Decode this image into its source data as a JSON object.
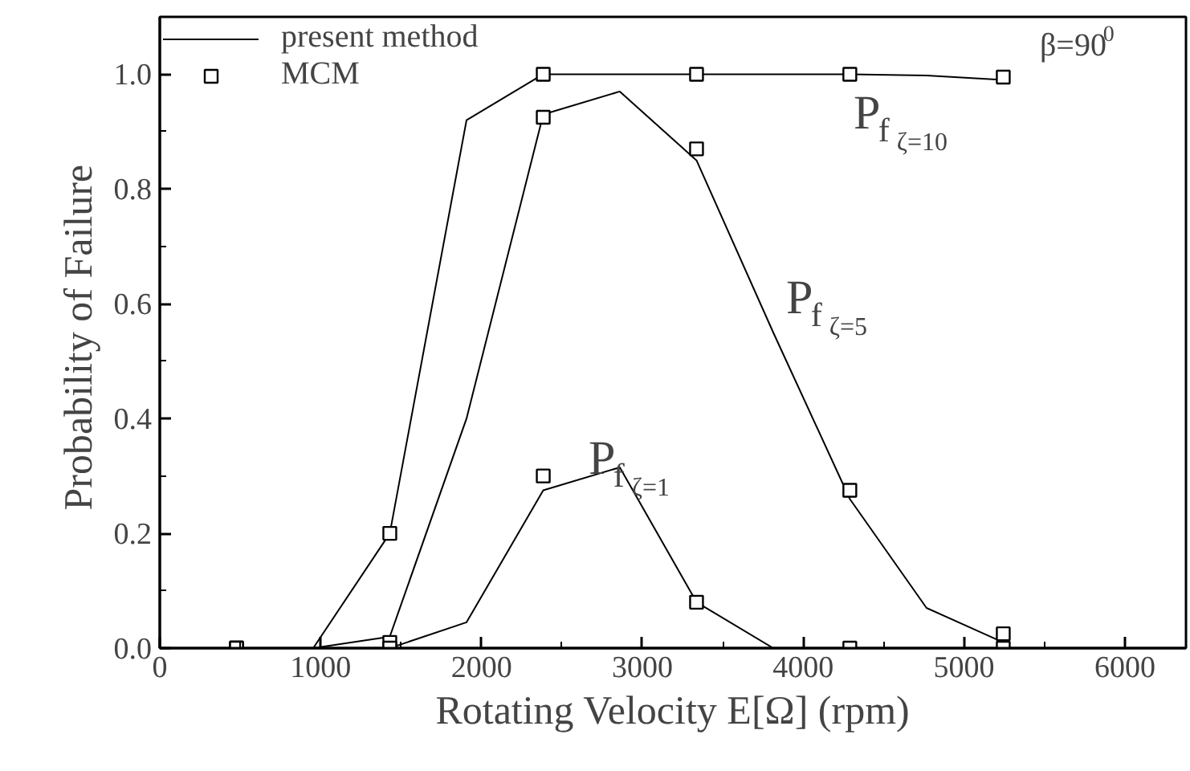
{
  "chart_data": {
    "type": "line",
    "xlabel": "Rotating Velocity E[Ω] (rpm)",
    "ylabel": "Probability of  Failure",
    "xlim": [
      0,
      6380
    ],
    "ylim": [
      0,
      1.1
    ],
    "xticks": [
      0,
      {
        "value": 500,
        "label": null
      },
      1000,
      {
        "value": 1500,
        "label": null
      },
      2000,
      {
        "value": 2500,
        "label": null
      },
      3000,
      {
        "value": 3500,
        "label": null
      },
      4000,
      {
        "value": 4500,
        "label": null
      },
      5000,
      {
        "value": 5500,
        "label": null
      },
      6000
    ],
    "yticks": [
      {
        "value": 0,
        "label": "0.0"
      },
      {
        "value": 0.1,
        "label": null
      },
      {
        "value": 0.2,
        "label": "0.2"
      },
      {
        "value": 0.3,
        "label": null
      },
      {
        "value": 0.4,
        "label": "0.4"
      },
      {
        "value": 0.5,
        "label": null
      },
      {
        "value": 0.6,
        "label": "0.6"
      },
      {
        "value": 0.7,
        "label": null
      },
      {
        "value": 0.8,
        "label": "0.8"
      },
      {
        "value": 0.9,
        "label": null
      },
      {
        "value": 1.0,
        "label": "1.0"
      }
    ],
    "grid": false,
    "legend": "top left",
    "series": [
      {
        "name": "present method",
        "marker": "none",
        "line_style": "solid",
        "color": "#000000",
        "x": [
          477,
          954,
          1430,
          1907,
          2384,
          2860,
          3337,
          3814,
          4290,
          4767,
          5244
        ],
        "values": [
          0,
          0,
          0.2,
          0.92,
          1.0,
          1.0,
          1.0,
          1.0,
          1.0,
          0.998,
          0.99
        ]
      },
      {
        "marker": "none",
        "line_style": "solid",
        "color": "#000000",
        "x": [
          477,
          954,
          1430,
          1907,
          2384,
          2860,
          3337,
          3814,
          4290,
          4767,
          5244
        ],
        "values": [
          0,
          0,
          0.02,
          0.4,
          0.93,
          0.97,
          0.85,
          0.55,
          0.26,
          0.07,
          0.01
        ]
      },
      {
        "marker": "none",
        "line_style": "solid",
        "color": "#000000",
        "x": [
          477,
          954,
          1430,
          1907,
          2384,
          2860,
          3337,
          3814,
          4290,
          4767,
          5244
        ],
        "values": [
          0,
          0,
          0,
          0.045,
          0.275,
          0.315,
          0.08,
          0,
          0,
          0,
          0
        ]
      },
      {
        "name": "MCM",
        "type": "scatter",
        "marker": "square",
        "color": "#000000",
        "x": [
          477,
          1430,
          2384,
          3337,
          4290,
          5244
        ],
        "values": [
          0,
          0.2,
          1.0,
          1.0,
          1.0,
          0.995
        ]
      },
      {
        "type": "scatter",
        "marker": "square",
        "color": "#000000",
        "x": [
          477,
          1430,
          2384,
          3337,
          4290,
          5244
        ],
        "values": [
          0,
          0.01,
          0.925,
          0.87,
          0.275,
          0.025
        ]
      },
      {
        "type": "scatter",
        "marker": "square",
        "color": "#000000",
        "x": [
          477,
          1430,
          2384,
          3337,
          4290,
          5244
        ],
        "values": [
          0,
          0,
          0.3,
          0.08,
          0,
          0
        ]
      }
    ],
    "annotations": [
      "β=90$^{0}$",
      "P$_{f}$$_{ζ=10}$",
      "P$_{f}$$_{ζ=5}$",
      "P$_{f}$$_{ζ=1}$"
    ]
  }
}
